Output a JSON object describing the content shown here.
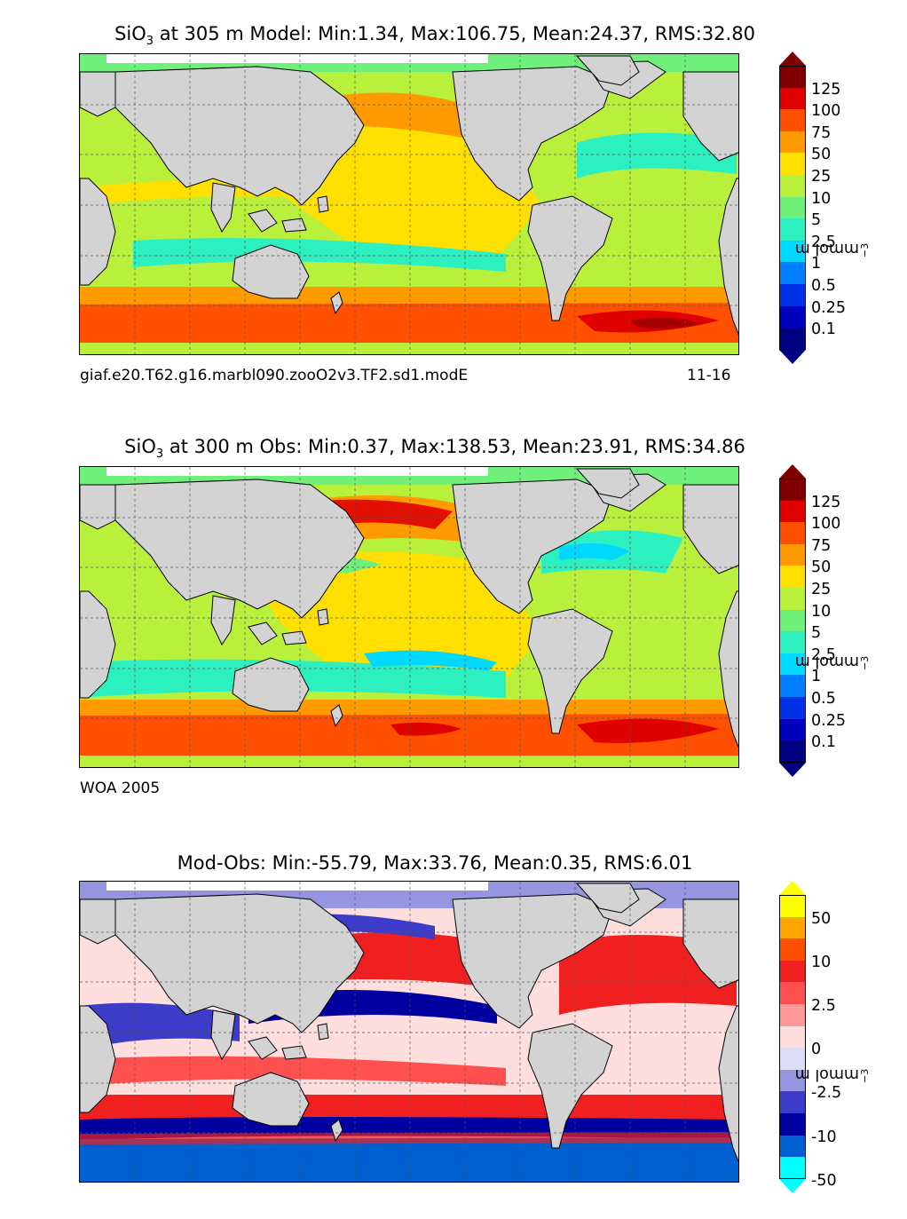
{
  "panels": [
    {
      "title_prefix": "SiO",
      "title_sub": "3",
      "title_rest": " at 305 m Model: Min:1.34, Max:106.75, Mean:24.37, RMS:32.80",
      "caption_left": "giaf.e20.T62.g16.marbl090.zooO2v3.TF2.sd1.modE",
      "caption_right": "11-16",
      "colorbar": {
        "ticks": [
          "125",
          "100",
          "75",
          "50",
          "25",
          "10",
          "5",
          "2.5",
          "1",
          "0.5",
          "0.25",
          "0.1"
        ],
        "colors": [
          "#800000",
          "#e00000",
          "#ff5000",
          "#ff9a00",
          "#ffe000",
          "#b8f03c",
          "#6ef07a",
          "#2df0c0",
          "#00d8ff",
          "#0080ff",
          "#0030e8",
          "#0000c0",
          "#000080"
        ],
        "under_color": "#000080",
        "over_color": "#800000",
        "unit_base": "mmol m",
        "unit_exp": "−3"
      }
    },
    {
      "title_prefix": "SiO",
      "title_sub": "3",
      "title_rest": " at 300 m Obs: Min:0.37, Max:138.53, Mean:23.91, RMS:34.86",
      "caption_left": "WOA 2005",
      "caption_right": "",
      "colorbar": {
        "ticks": [
          "125",
          "100",
          "75",
          "50",
          "25",
          "10",
          "5",
          "2.5",
          "1",
          "0.5",
          "0.25",
          "0.1"
        ],
        "colors": [
          "#800000",
          "#e00000",
          "#ff5000",
          "#ff9a00",
          "#ffe000",
          "#b8f03c",
          "#6ef07a",
          "#2df0c0",
          "#00d8ff",
          "#0080ff",
          "#0030e8",
          "#0000c0",
          "#000080"
        ],
        "under_color": "#000080",
        "over_color": "#800000",
        "unit_base": "mmol m",
        "unit_exp": "−3"
      }
    },
    {
      "title_prefix": "Mod-Obs: Min:-55.79, Max:33.76, Mean:0.35, RMS:6.01",
      "title_sub": "",
      "title_rest": "",
      "caption_left": "",
      "caption_right": "",
      "colorbar": {
        "ticks": [
          "50",
          "",
          "10",
          "",
          "2.5",
          "",
          "0",
          "",
          "-2.5",
          "",
          "-10",
          "",
          "-50"
        ],
        "colors": [
          "#ffff00",
          "#ffa500",
          "#ff5000",
          "#f02020",
          "#ff5050",
          "#ff9999",
          "#ffdede",
          "#dcdcf5",
          "#9595e0",
          "#3c3cc8",
          "#0000a0",
          "#0060d0",
          "#00ffff"
        ],
        "under_color": "#00ffff",
        "over_color": "#ffff00",
        "unit_base": "mmol m",
        "unit_exp": "−3"
      }
    }
  ]
}
